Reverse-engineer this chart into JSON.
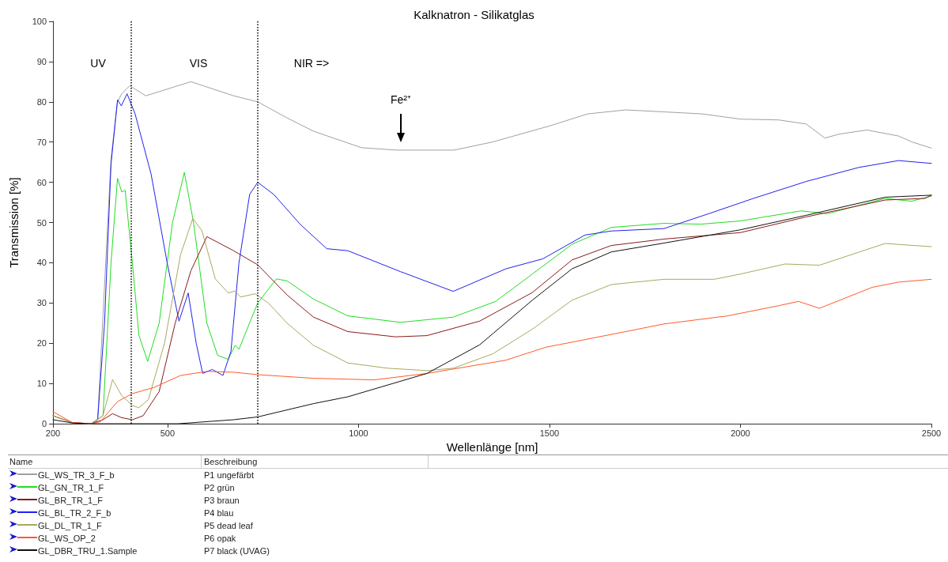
{
  "chart_data": {
    "type": "line",
    "title": "Kalknatron - Silikatglas",
    "xlabel": "Wellenlänge [nm]",
    "ylabel": "Transmission [%]",
    "xlim": [
      200,
      2500
    ],
    "xticks": [
      200,
      500,
      1000,
      1500,
      2000,
      2500
    ],
    "ylim": [
      0,
      100
    ],
    "yticks": [
      0,
      10,
      20,
      30,
      40,
      50,
      60,
      70,
      80,
      90,
      100
    ],
    "legend": "bottom",
    "legend_title": "Name",
    "ref_lines": [
      {
        "axis": "x",
        "value": 405,
        "color": "#000000",
        "line_style": "dotted"
      },
      {
        "axis": "x",
        "value": 735,
        "color": "#000000",
        "line_style": "dotted"
      }
    ],
    "annotations": [
      "UV",
      "VIS",
      "NIR =>",
      "Fe²⁺",
      "Beschreibung",
      "P1 ungefärbt",
      "P2 grün",
      "P3 braun",
      "P4 blau",
      "P5 dead leaf",
      "P6 opak",
      "P7 black (UVAG)"
    ],
    "series": [
      {
        "name": "GL_WS_TR_3_F_b",
        "color": "#a0a0a0",
        "x": [
          200,
          250,
          300,
          317,
          352,
          369,
          380,
          401,
          443,
          561,
          673,
          736,
          813,
          882,
          1008,
          1100,
          1250,
          1350,
          1500,
          1600,
          1700,
          1759,
          1900,
          2000,
          2100,
          2172,
          2221,
          2260,
          2331,
          2414,
          2450,
          2500
        ],
        "values": [
          2,
          0.3,
          0,
          1,
          66,
          80,
          82,
          84,
          81.5,
          85,
          81.5,
          80,
          76,
          72.7,
          68.6,
          68,
          68,
          70,
          74,
          77,
          78,
          77.7,
          77,
          75.7,
          75.5,
          74.5,
          71,
          72,
          73,
          71.5,
          70,
          68.5
        ]
      },
      {
        "name": "GL_GN_TR_1_F",
        "color": "#22dd22",
        "x": [
          300,
          331,
          352,
          369,
          380,
          389,
          408,
          425,
          448,
          478,
          513,
          544,
          568,
          603,
          631,
          659,
          677,
          687,
          736,
          785,
          813,
          882,
          972,
          1110,
          1248,
          1359,
          1455,
          1559,
          1662,
          1800,
          1897,
          2000,
          2159,
          2228,
          2379,
          2448,
          2500
        ],
        "values": [
          0,
          2,
          40,
          61,
          57.6,
          58,
          40,
          22,
          15.5,
          25,
          50,
          62.5,
          50,
          25,
          17,
          16,
          19.5,
          18.5,
          30,
          36,
          35.5,
          31,
          26.8,
          25.2,
          26.5,
          30.4,
          37.2,
          44.6,
          48.8,
          49.8,
          49.6,
          50.4,
          52.9,
          52.2,
          56,
          55.3,
          56.6
        ]
      },
      {
        "name": "GL_BR_TR_1_F",
        "color": "#8b1a1a",
        "x": [
          200,
          250,
          300,
          331,
          356,
          380,
          408,
          436,
          478,
          520,
          561,
          603,
          673,
          736,
          813,
          882,
          972,
          1097,
          1179,
          1317,
          1455,
          1559,
          1662,
          1800,
          2000,
          2172,
          2379,
          2483,
          2500
        ],
        "values": [
          2,
          0.3,
          0,
          1,
          2.5,
          1.5,
          1,
          2,
          8,
          25,
          38,
          46.5,
          43,
          39.5,
          32,
          26.5,
          22.9,
          21.6,
          21.9,
          25.5,
          32.6,
          40.7,
          44.3,
          45.9,
          47.5,
          51.4,
          55.6,
          56,
          56.8
        ]
      },
      {
        "name": "GL_BL_TR_2_F_b",
        "color": "#2222ee",
        "x": [
          300,
          317,
          335,
          352,
          369,
          379,
          394,
          415,
          457,
          499,
          530,
          554,
          575,
          592,
          617,
          645,
          666,
          687,
          715,
          736,
          778,
          848,
          917,
          972,
          1110,
          1248,
          1386,
          1483,
          1593,
          1662,
          1800,
          1917,
          2034,
          2172,
          2310,
          2414,
          2500
        ],
        "values": [
          0,
          1,
          25,
          64.5,
          80.5,
          79,
          82,
          77,
          62,
          40,
          25.5,
          32.5,
          20,
          12.5,
          13.5,
          12,
          18,
          40,
          57,
          60,
          57,
          49.5,
          43.5,
          43,
          37.8,
          32.9,
          38.5,
          41,
          46.9,
          47.9,
          48.5,
          52.2,
          56,
          60.2,
          63.7,
          65.4,
          64.7
        ]
      },
      {
        "name": "GL_DL_TR_1_F",
        "color": "#a8a860",
        "x": [
          200,
          250,
          300,
          331,
          356,
          380,
          408,
          425,
          450,
          492,
          534,
          566,
          590,
          625,
          659,
          677,
          691,
          729,
          764,
          813,
          882,
          972,
          1076,
          1179,
          1248,
          1352,
          1455,
          1559,
          1662,
          1800,
          1931,
          2000,
          2117,
          2207,
          2379,
          2500
        ],
        "values": [
          2,
          0.3,
          0,
          2,
          11,
          7,
          4.5,
          4,
          6,
          20,
          42,
          51,
          48,
          36,
          32.5,
          33,
          31.5,
          32.3,
          30,
          25,
          19.5,
          15.1,
          13.8,
          13.2,
          13.8,
          17.4,
          23.5,
          30.7,
          34.6,
          35.9,
          35.9,
          37.2,
          39.7,
          39.4,
          44.8,
          44
        ]
      },
      {
        "name": "GL_WS_OP_2",
        "color": "#ff5a2a",
        "x": [
          200,
          250,
          300,
          324,
          346,
          369,
          408,
          464,
          534,
          603,
          673,
          736,
          882,
          1041,
          1179,
          1386,
          1490,
          1662,
          1800,
          1966,
          2103,
          2152,
          2207,
          2345,
          2414,
          2500
        ],
        "values": [
          3,
          0.3,
          0,
          0.5,
          3,
          5.5,
          7.5,
          9,
          12,
          13,
          12.8,
          12.2,
          11.3,
          10.9,
          12.5,
          15.8,
          19,
          22.2,
          24.8,
          26.8,
          29.4,
          30.4,
          28.7,
          33.9,
          35.2,
          35.9
        ]
      },
      {
        "name": "GL_DBR_TRU_1.Sample",
        "color": "#111111",
        "x": [
          200,
          250,
          300,
          527,
          673,
          736,
          882,
          972,
          1179,
          1317,
          1455,
          1559,
          1662,
          1800,
          2000,
          2172,
          2379,
          2500
        ],
        "values": [
          1,
          0.2,
          0,
          0,
          1,
          1.7,
          5,
          6.7,
          12.5,
          19.6,
          30.7,
          38.5,
          42.7,
          44.9,
          48.2,
          51.8,
          56.3,
          56.8
        ]
      }
    ]
  }
}
